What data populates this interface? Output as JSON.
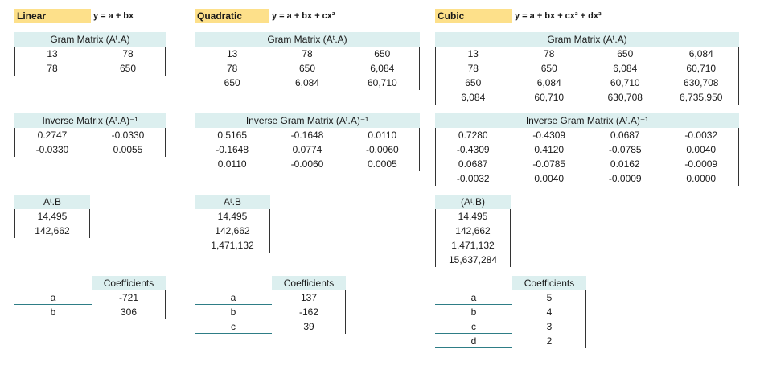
{
  "linear": {
    "name": "Linear",
    "formula": "y = a + bx",
    "gram_header": "Gram Matrix  (Aᵗ.A)",
    "gram": [
      [
        "13",
        "78"
      ],
      [
        "78",
        "650"
      ]
    ],
    "inverse_header": "Inverse Matrix  (Aᵗ.A)⁻¹",
    "inverse": [
      [
        "0.2747",
        "-0.0330"
      ],
      [
        "-0.0330",
        "0.0055"
      ]
    ],
    "atb_header": "Aᵗ.B",
    "atb": [
      "14,495",
      "142,662"
    ],
    "coef_header": "Coefficients",
    "coef_labels": [
      "a",
      "b"
    ],
    "coef_values": [
      "-721",
      "306"
    ]
  },
  "quadratic": {
    "name": "Quadratic",
    "formula": "y = a + bx + cx²",
    "gram_header": "Gram Matrix  (Aᵗ.A)",
    "gram": [
      [
        "13",
        "78",
        "650"
      ],
      [
        "78",
        "650",
        "6,084"
      ],
      [
        "650",
        "6,084",
        "60,710"
      ]
    ],
    "inverse_header": "Inverse Gram Matrix  (Aᵗ.A)⁻¹",
    "inverse": [
      [
        "0.5165",
        "-0.1648",
        "0.0110"
      ],
      [
        "-0.1648",
        "0.0774",
        "-0.0060"
      ],
      [
        "0.0110",
        "-0.0060",
        "0.0005"
      ]
    ],
    "atb_header": "Aᵗ.B",
    "atb": [
      "14,495",
      "142,662",
      "1,471,132"
    ],
    "coef_header": "Coefficients",
    "coef_labels": [
      "a",
      "b",
      "c"
    ],
    "coef_values": [
      "137",
      "-162",
      "39"
    ]
  },
  "cubic": {
    "name": "Cubic",
    "formula": "y = a + bx + cx² + dx³",
    "gram_header": "Gram Matrix  (Aᵗ.A)",
    "gram": [
      [
        "13",
        "78",
        "650",
        "6,084"
      ],
      [
        "78",
        "650",
        "6,084",
        "60,710"
      ],
      [
        "650",
        "6,084",
        "60,710",
        "630,708"
      ],
      [
        "6,084",
        "60,710",
        "630,708",
        "6,735,950"
      ]
    ],
    "inverse_header": "Inverse Gram Matrix  (Aᵗ.A)⁻¹",
    "inverse": [
      [
        "0.7280",
        "-0.4309",
        "0.0687",
        "-0.0032"
      ],
      [
        "-0.4309",
        "0.4120",
        "-0.0785",
        "0.0040"
      ],
      [
        "0.0687",
        "-0.0785",
        "0.0162",
        "-0.0009"
      ],
      [
        "-0.0032",
        "0.0040",
        "-0.0009",
        "0.0000"
      ]
    ],
    "atb_header": "(Aᵗ.B)",
    "atb": [
      "14,495",
      "142,662",
      "1,471,132",
      "15,637,284"
    ],
    "coef_header": "Coefficients",
    "coef_labels": [
      "a",
      "b",
      "c",
      "d"
    ],
    "coef_values": [
      "5",
      "4",
      "3",
      "2"
    ]
  }
}
